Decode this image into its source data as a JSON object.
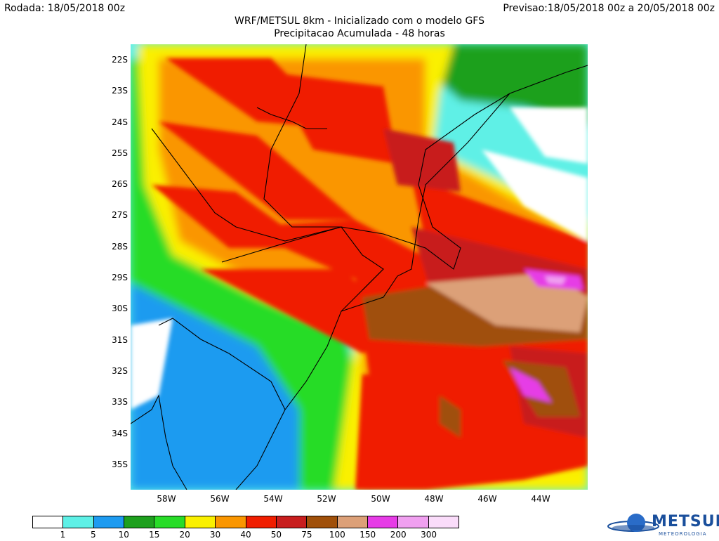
{
  "header": {
    "run": "Rodada: 18/05/2018 00z",
    "forecast": "Previsao:18/05/2018 00z a 20/05/2018 00z",
    "title": "WRF/METSUL 8km - Inicializado com o modelo GFS",
    "subtitle": "Precipitacao Acumulada - 48 horas"
  },
  "axes": {
    "latitudes": [
      "22S",
      "23S",
      "24S",
      "25S",
      "26S",
      "27S",
      "28S",
      "29S",
      "30S",
      "31S",
      "32S",
      "33S",
      "34S",
      "35S"
    ],
    "longitudes": [
      "58W",
      "56W",
      "54W",
      "52W",
      "50W",
      "48W",
      "46W",
      "44W"
    ]
  },
  "legend": {
    "labels": [
      "1",
      "5",
      "10",
      "15",
      "20",
      "30",
      "40",
      "50",
      "75",
      "100",
      "150",
      "200",
      "300"
    ],
    "colors": [
      "#ffffff",
      "#5ef0e6",
      "#1e9bf0",
      "#1ea01e",
      "#28dc28",
      "#faf000",
      "#fa9600",
      "#f01e00",
      "#c81e1e",
      "#a0500a",
      "#dca078",
      "#e63ce6",
      "#f0a0f0",
      "#fadcfa"
    ]
  },
  "logo": {
    "name": "METSUL",
    "tagline": "METEOROLOGIA"
  }
}
